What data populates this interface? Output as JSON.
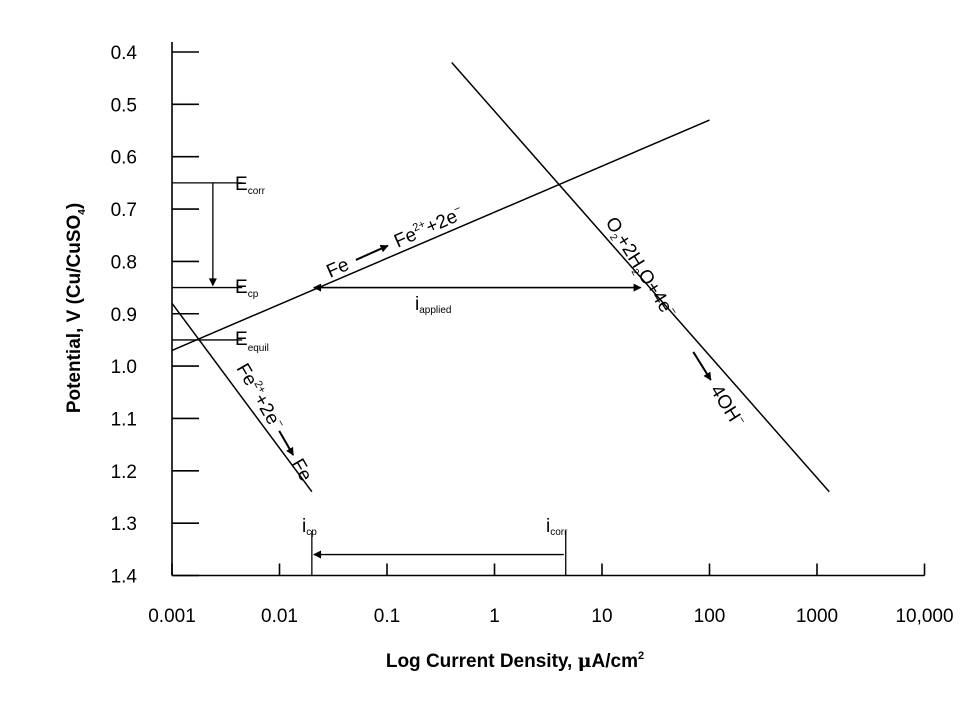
{
  "chart_data": {
    "type": "line",
    "xlabel": "Log Current Density, μA/cm2",
    "ylabel": "Potential, V (Cu/CuSO4)",
    "x_scale": "log",
    "xlim": [
      0.001,
      10000
    ],
    "ylim": [
      0.4,
      1.4
    ],
    "y_inverted": true,
    "x_ticks": [
      "0.001",
      "0.01",
      "0.1",
      "1",
      "10",
      "100",
      "1000",
      "10,000"
    ],
    "y_ticks": [
      "0.4",
      "0.5",
      "0.6",
      "0.7",
      "0.8",
      "0.9",
      "1.0",
      "1.1",
      "1.2",
      "1.3",
      "1.4"
    ],
    "grid": false,
    "series": [
      {
        "name": "Fe → Fe2++2e−",
        "x": [
          0.001,
          100
        ],
        "y": [
          0.97,
          0.53
        ]
      },
      {
        "name": "O2+2H2O+4e− → 4OH−",
        "x": [
          0.4,
          1300
        ],
        "y": [
          0.42,
          1.24
        ]
      },
      {
        "name": "Fe2++2e− → Fe",
        "x": [
          0.001,
          0.02
        ],
        "y": [
          0.88,
          1.24
        ]
      }
    ],
    "levels": [
      {
        "label": "Ecorr",
        "y": 0.65
      },
      {
        "label": "Ecp",
        "y": 0.85
      },
      {
        "label": "Eequil",
        "y": 0.95
      }
    ],
    "markers": [
      {
        "label": "icp",
        "x": 0.02
      },
      {
        "label": "icorr",
        "x": 4.6
      }
    ],
    "arrows": [
      {
        "label": "iapplied",
        "x_from": 0.02,
        "x_to": 25,
        "y": 0.85
      },
      {
        "from_label": "icorr",
        "to_label": "icp",
        "x_from": 4.6,
        "x_to": 0.02,
        "y": 1.36
      },
      {
        "from_label": "Ecorr",
        "to_label": "Ecp",
        "x": 0.0024,
        "y_from": 0.65,
        "y_to": 0.85
      }
    ],
    "annotations": {
      "fe_oxidation": "Fe → Fe2++2e−",
      "o2_reduction": "O2+2H2O+4e− → 4OH−",
      "fe_reduction": "Fe2++2e− → Fe",
      "e_corr": "Ecorr",
      "e_cp": "Ecp",
      "e_equil": "Eequil",
      "i_applied": "iapplied",
      "i_cp": "icp",
      "i_corr": "icorr"
    },
    "text_parts": {
      "ylabel_main": "Potential, V (Cu/CuSO",
      "ylabel_sub": "4",
      "ylabel_end": ")",
      "xlabel_main": "Log Current Density, ",
      "xlabel_mu": "μ",
      "xlabel_unit": "A/cm",
      "xlabel_sup": "2",
      "E": "E",
      "i": "i",
      "corr": "corr",
      "cp": "cp",
      "equil": "equil",
      "applied": "applied",
      "fe": "Fe",
      "fe2": "Fe",
      "twoplus": "2+",
      "plus2e": "+2e",
      "minus": "−",
      "O": "O",
      "two": "2",
      "plus2H": "+2H",
      "O4e": "O+4e",
      "fourOH": "4OH"
    }
  }
}
